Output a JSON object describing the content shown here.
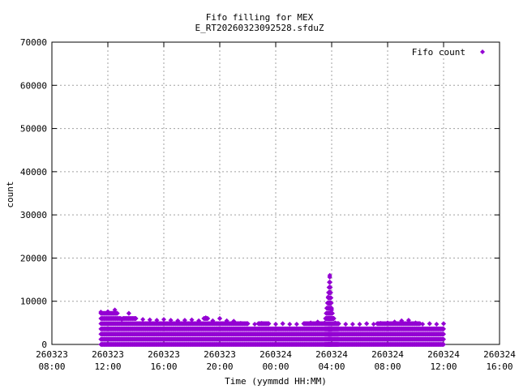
{
  "chart_data": {
    "type": "scatter",
    "title": "Fifo filling for MEX",
    "subtitle": "E_RT20260323092528.sfduZ",
    "xlabel": "Time (yymmdd HH:MM)",
    "ylabel": "count",
    "x_range_hours": [
      0,
      32
    ],
    "ylim": [
      0,
      70000
    ],
    "y_ticks": [
      "0",
      "10000",
      "20000",
      "30000",
      "40000",
      "50000",
      "60000",
      "70000"
    ],
    "x_ticks": [
      {
        "date": "260323",
        "time": "08:00"
      },
      {
        "date": "260323",
        "time": "12:00"
      },
      {
        "date": "260323",
        "time": "16:00"
      },
      {
        "date": "260323",
        "time": "20:00"
      },
      {
        "date": "260324",
        "time": "00:00"
      },
      {
        "date": "260324",
        "time": "04:00"
      },
      {
        "date": "260324",
        "time": "08:00"
      },
      {
        "date": "260324",
        "time": "12:00"
      },
      {
        "date": "260324",
        "time": "16:00"
      }
    ],
    "grid": true,
    "legend_position": "top-right",
    "series": [
      {
        "name": "Fifo count",
        "color": "#9400d3",
        "marker": "diamond",
        "x": [
          "260323 11:30",
          "260323 12:00",
          "260323 12:30",
          "260323 13:00",
          "260323 13:30",
          "260323 14:00",
          "260323 14:30",
          "260323 15:00",
          "260323 15:30",
          "260323 16:00",
          "260323 16:30",
          "260323 17:00",
          "260323 17:30",
          "260323 18:00",
          "260323 18:30",
          "260323 19:00",
          "260323 19:30",
          "260323 20:00",
          "260323 20:30",
          "260323 21:00",
          "260323 21:30",
          "260323 22:00",
          "260323 22:30",
          "260323 23:00",
          "260323 23:30",
          "260324 00:00",
          "260324 00:30",
          "260324 01:00",
          "260324 01:30",
          "260324 02:00",
          "260324 02:30",
          "260324 03:00",
          "260324 03:30",
          "260324 03:45",
          "260324 03:52",
          "260324 04:00",
          "260324 04:15",
          "260324 04:30",
          "260324 05:00",
          "260324 05:30",
          "260324 06:00",
          "260324 06:30",
          "260324 07:00",
          "260324 07:30",
          "260324 08:00",
          "260324 08:30",
          "260324 09:00",
          "260324 09:30",
          "260324 10:00",
          "260324 10:30",
          "260324 11:00",
          "260324 11:30",
          "260324 12:00"
        ],
        "y": [
          7500,
          7600,
          8000,
          5800,
          7200,
          6000,
          5800,
          5700,
          5600,
          5800,
          5600,
          5500,
          5600,
          5700,
          5500,
          6200,
          5500,
          6000,
          5500,
          5400,
          4900,
          4800,
          4700,
          4900,
          4800,
          4700,
          4800,
          4700,
          4700,
          4800,
          5000,
          5200,
          5000,
          11000,
          16000,
          8000,
          5000,
          4800,
          4700,
          4700,
          4700,
          4800,
          4700,
          4900,
          5000,
          5200,
          5500,
          5600,
          5000,
          4700,
          4800,
          4700,
          4800
        ]
      }
    ]
  }
}
